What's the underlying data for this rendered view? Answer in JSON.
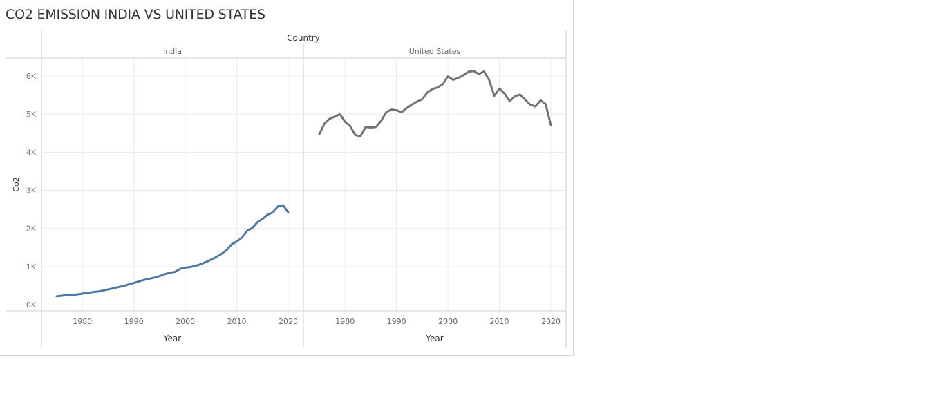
{
  "title": "CO2 EMISSION INDIA VS UNITED STATES",
  "colors": {
    "india": "#4e79a7",
    "united_states": "#76706f",
    "grid": "#ececec",
    "axis": "#cccccc"
  },
  "chart_data": {
    "type": "line",
    "title": "CO2 EMISSION INDIA VS UNITED STATES",
    "column_header": "Country",
    "xlabel": "Year",
    "ylabel": "Co2",
    "ylim": [
      0,
      6450
    ],
    "xlim": [
      1970,
      2022
    ],
    "x_ticks": [
      1980,
      1990,
      2000,
      2010,
      2020
    ],
    "y_ticks": [
      0,
      1000,
      2000,
      3000,
      4000,
      5000,
      6000
    ],
    "y_tick_labels": [
      "0K",
      "1K",
      "2K",
      "3K",
      "4K",
      "5K",
      "6K"
    ],
    "grid": true,
    "x": [
      1975,
      1976,
      1977,
      1978,
      1979,
      1980,
      1981,
      1982,
      1983,
      1984,
      1985,
      1986,
      1987,
      1988,
      1989,
      1990,
      1991,
      1992,
      1993,
      1994,
      1995,
      1996,
      1997,
      1998,
      1999,
      2000,
      2001,
      2002,
      2003,
      2004,
      2005,
      2006,
      2007,
      2008,
      2009,
      2010,
      2011,
      2012,
      2013,
      2014,
      2015,
      2016,
      2017,
      2018,
      2019,
      2020
    ],
    "series": [
      {
        "name": "India",
        "color": "#4e79a7",
        "values": [
          220,
          235,
          250,
          255,
          270,
          290,
          310,
          330,
          345,
          370,
          400,
          430,
          460,
          490,
          530,
          570,
          610,
          650,
          680,
          710,
          750,
          800,
          840,
          860,
          940,
          970,
          990,
          1020,
          1060,
          1120,
          1180,
          1250,
          1330,
          1430,
          1580,
          1660,
          1760,
          1940,
          2010,
          2160,
          2250,
          2360,
          2420,
          2580,
          2610,
          2420
        ]
      },
      {
        "name": "United States",
        "color": "#76706f",
        "values": [
          4470,
          4750,
          4880,
          4930,
          5000,
          4800,
          4680,
          4450,
          4420,
          4660,
          4650,
          4660,
          4820,
          5050,
          5120,
          5100,
          5050,
          5160,
          5250,
          5330,
          5390,
          5570,
          5660,
          5700,
          5790,
          5990,
          5900,
          5950,
          6020,
          6110,
          6130,
          6050,
          6120,
          5900,
          5480,
          5670,
          5540,
          5340,
          5470,
          5510,
          5380,
          5250,
          5200,
          5360,
          5260,
          4710
        ]
      }
    ]
  }
}
